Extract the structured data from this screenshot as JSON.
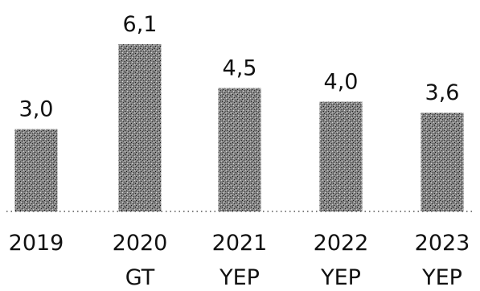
{
  "chart_data": {
    "type": "bar",
    "categories": [
      [
        "2019"
      ],
      [
        "2020",
        "GT"
      ],
      [
        "2021",
        "YEP"
      ],
      [
        "2022",
        "YEP"
      ],
      [
        "2023",
        "YEP"
      ]
    ],
    "values": [
      3.0,
      6.1,
      4.5,
      4.0,
      3.6
    ],
    "value_labels": [
      "3,0",
      "6,1",
      "4,5",
      "4,0",
      "3,6"
    ],
    "ylim": [
      0,
      6.1
    ],
    "bar_style": "stippled dark grey",
    "baseline": "dotted",
    "grid": false,
    "legend": "none",
    "colors": {
      "bar_dark": "#3a3a3a",
      "bar_light": "#9a9a9a",
      "text": "#111111",
      "baseline": "#555555"
    }
  }
}
